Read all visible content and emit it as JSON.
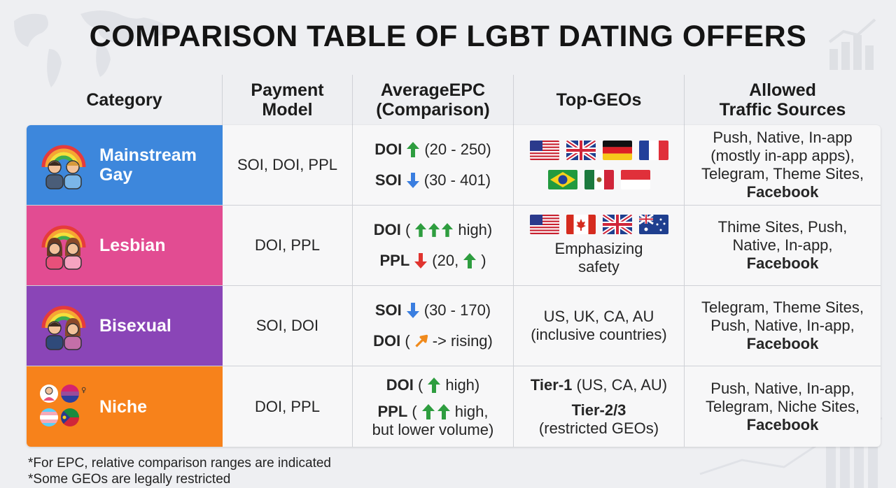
{
  "title": "COMPARISON TABLE OF LGBT DATING OFFERS",
  "headers": {
    "category": "Category",
    "payment": "Payment\nModel",
    "epc": "AverageEPC\n(Comparison)",
    "geos": "Top-GEOs",
    "traffic": "Allowed\nTraffic Sources"
  },
  "rows": [
    {
      "category": "Mainstream\nGay",
      "color": "#3d87dc",
      "payment": "SOI, DOI, PPL",
      "epc": [
        {
          "label": "DOI",
          "arrows": "up",
          "text": "(20 - 250)"
        },
        {
          "label": "SOI",
          "arrows": "down",
          "text": "(30 - 401)"
        }
      ],
      "flags_row1": [
        "US",
        "UK",
        "DE",
        "FR"
      ],
      "flags_row2": [
        "BR",
        "MX",
        "ID"
      ],
      "traffic": [
        "Push, Native, In-app",
        "(mostly in-app apps),",
        "Telegram, Theme Sites,"
      ],
      "traffic_bold": "Facebook"
    },
    {
      "category": "Lesbian",
      "color": "#e24c92",
      "payment": "DOI, PPL",
      "epc": [
        {
          "label": "DOI",
          "pre": "(",
          "arrows": "up3",
          "text": "high)"
        },
        {
          "label": "PPL",
          "arrows": "down",
          "text": "(20,",
          "post_arrow": "up",
          "post": ")"
        }
      ],
      "flags_row1": [
        "US",
        "CA",
        "UK",
        "AU"
      ],
      "geo_text": [
        "Emphasizing",
        "safety"
      ],
      "traffic": [
        "Thime Sites, Push,",
        "Native, In-app,"
      ],
      "traffic_bold": "Facebook"
    },
    {
      "category": "Bisexual",
      "color": "#8a45b7",
      "payment": "SOI, DOI",
      "epc": [
        {
          "label": "SOI",
          "arrows": "down",
          "text": "(30 - 170)"
        },
        {
          "label": "DOI",
          "pre": "(",
          "arrows": "diag",
          "text": "-> rising)"
        }
      ],
      "geo_text": [
        "US, UK, CA, AU",
        "(inclusive countries)"
      ],
      "traffic": [
        "Telegram, Theme Sites,",
        "Push, Native, In-app,"
      ],
      "traffic_bold": "Facebook"
    },
    {
      "category": "Niche",
      "color": "#f7821b",
      "payment": "DOI, PPL",
      "epc": [
        {
          "label": "DOI",
          "pre": "(",
          "arrows": "up",
          "text": "high)"
        },
        {
          "label": "PPL",
          "pre": "(",
          "arrows": "up2",
          "text": "high,",
          "sub": "but lower volume)"
        }
      ],
      "geo_bold_lines": [
        "Tier-1",
        "Tier-2/3"
      ],
      "geo_lines": [
        "(US, CA, AU)",
        "(restricted GEOs)"
      ],
      "traffic": [
        "Push, Native, In-app,",
        "Telegram, Niche Sites,"
      ],
      "traffic_bold": "Facebook"
    }
  ],
  "footnotes": [
    "*For EPC, relative comparison ranges are indicated",
    "*Some GEOs are legally restricted"
  ],
  "colors": {
    "up_arrow": "#2e9d3f",
    "down_arrow": "#3a7ee0",
    "down_red": "#e0342f",
    "diag_arrow": "#f08a1c"
  }
}
